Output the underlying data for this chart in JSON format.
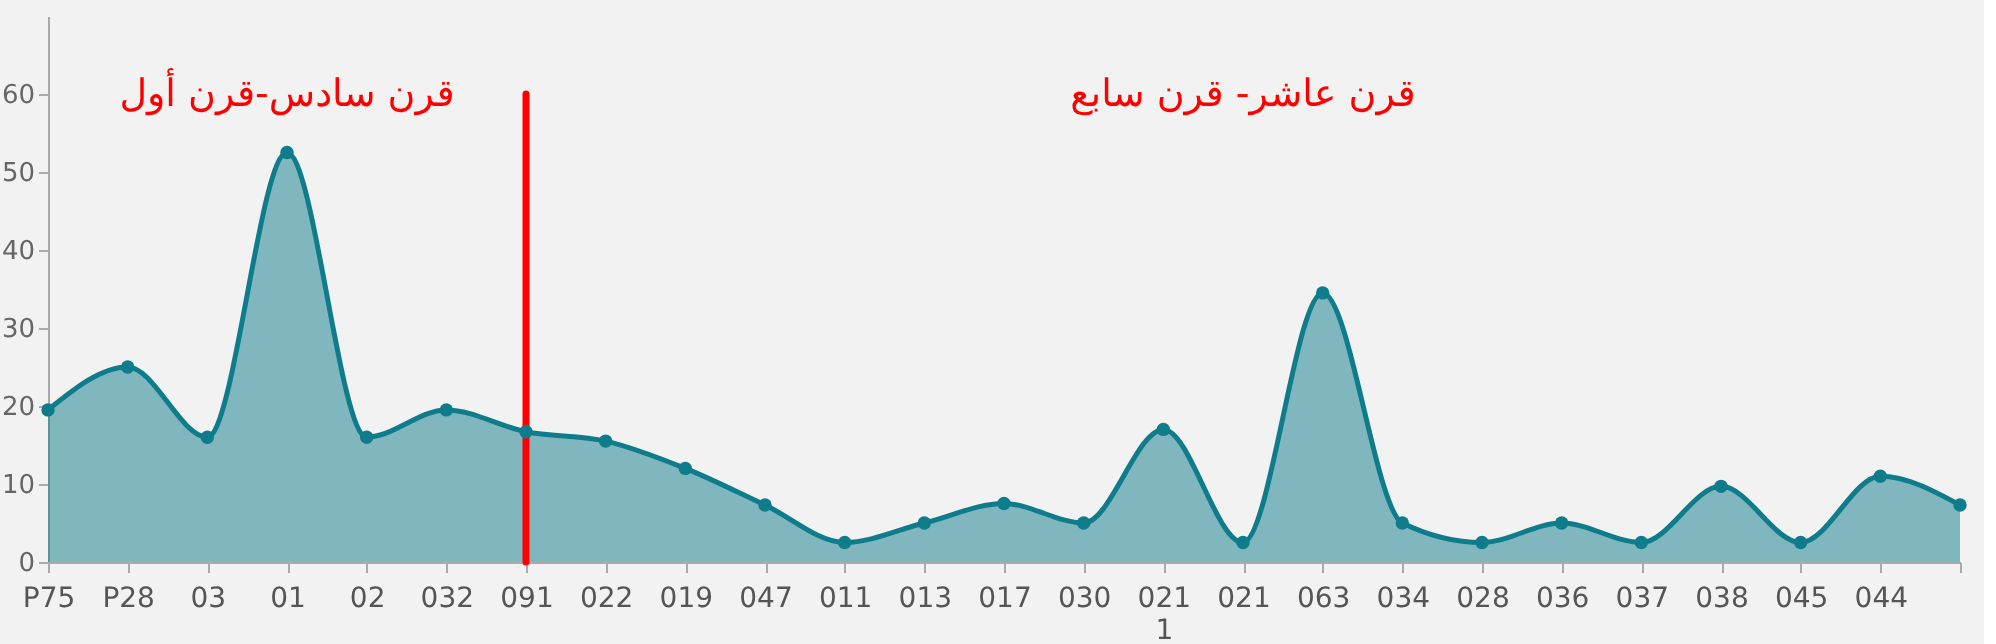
{
  "chart_data": {
    "type": "area",
    "categories": [
      "P75",
      "P28",
      "03",
      "01",
      "02",
      "032",
      "091",
      "022",
      "019",
      "047",
      "011",
      "013",
      "017",
      "030",
      "021\n1",
      "021",
      "063",
      "034",
      "028",
      "036",
      "037",
      "038",
      "045",
      "044",
      null
    ],
    "series": [
      {
        "color": "#0e7c8a",
        "values": [
          19.5,
          25,
          16,
          52.5,
          16,
          19.5,
          16.7,
          15.5,
          12,
          7.3,
          2.5,
          5,
          7.5,
          5,
          17,
          2.5,
          34.5,
          5,
          2.5,
          5,
          2.5,
          9.7,
          2.5,
          11,
          7.3
        ]
      }
    ],
    "ylim": [
      0,
      70
    ],
    "yticks": [
      0,
      10,
      20,
      30,
      40,
      50,
      60
    ],
    "ref_lines": [
      {
        "axis": "x",
        "value": "091",
        "color": "#ff0000"
      }
    ],
    "annotations": [
      "قرن سادس-قرن أول",
      "قرن عاشر- قرن سابع"
    ],
    "marker": "circle",
    "grid": false
  }
}
